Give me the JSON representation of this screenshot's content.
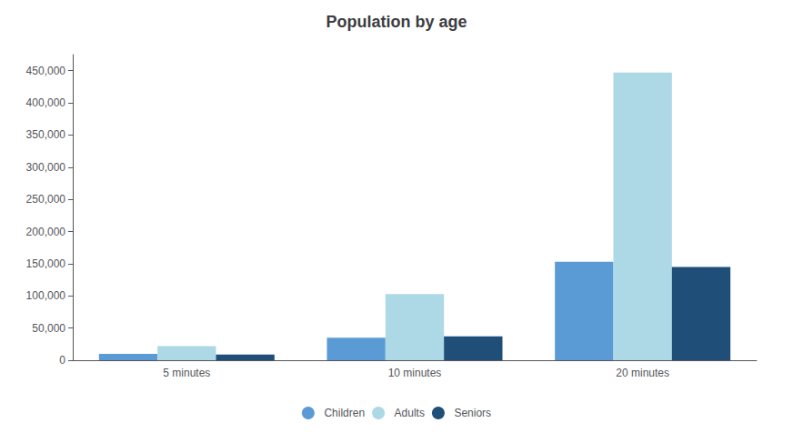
{
  "chart_data": {
    "type": "bar",
    "title": "Population by age",
    "categories": [
      "5 minutes",
      "10 minutes",
      "20 minutes"
    ],
    "series": [
      {
        "name": "Children",
        "values": [
          10000,
          35000,
          153000
        ],
        "color": "#5b9bd5"
      },
      {
        "name": "Adults",
        "values": [
          22000,
          103000,
          447000
        ],
        "color": "#add8e6"
      },
      {
        "name": "Seniors",
        "values": [
          9000,
          37000,
          145000
        ],
        "color": "#1f4e79"
      }
    ],
    "ylim": [
      0,
      475000
    ],
    "yticks": [
      0,
      {
        "value": 50000,
        "label": "50,000"
      },
      {
        "value": 100000,
        "label": "100,000"
      },
      {
        "value": 150000,
        "label": "150,000"
      },
      {
        "value": 200000,
        "label": "200,000"
      },
      {
        "value": 250000,
        "label": "250,000"
      },
      {
        "value": 300000,
        "label": "300,000"
      },
      {
        "value": 350000,
        "label": "350,000"
      },
      {
        "value": 400000,
        "label": "400,000"
      },
      {
        "value": 450000,
        "label": "450,000"
      }
    ],
    "grid": false,
    "legend": "bottom"
  }
}
